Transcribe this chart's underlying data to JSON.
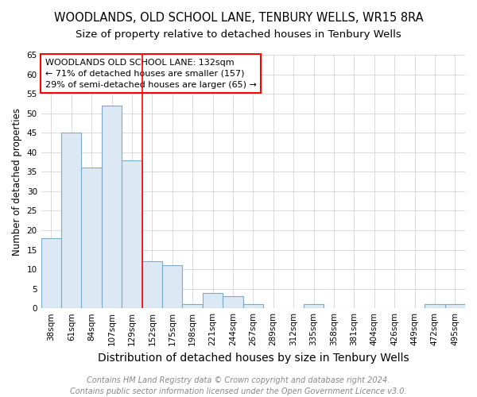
{
  "title": "WOODLANDS, OLD SCHOOL LANE, TENBURY WELLS, WR15 8RA",
  "subtitle": "Size of property relative to detached houses in Tenbury Wells",
  "xlabel": "Distribution of detached houses by size in Tenbury Wells",
  "ylabel": "Number of detached properties",
  "categories": [
    "38sqm",
    "61sqm",
    "84sqm",
    "107sqm",
    "129sqm",
    "152sqm",
    "175sqm",
    "198sqm",
    "221sqm",
    "244sqm",
    "267sqm",
    "289sqm",
    "312sqm",
    "335sqm",
    "358sqm",
    "381sqm",
    "404sqm",
    "426sqm",
    "449sqm",
    "472sqm",
    "495sqm"
  ],
  "values": [
    18,
    45,
    36,
    52,
    38,
    12,
    11,
    1,
    4,
    3,
    1,
    0,
    0,
    1,
    0,
    0,
    0,
    0,
    0,
    1,
    1
  ],
  "bar_color": "#dce9f5",
  "bar_edge_color": "#7aaac8",
  "red_line_x": 4.5,
  "annotation_text": "WOODLANDS OLD SCHOOL LANE: 132sqm\n← 71% of detached houses are smaller (157)\n29% of semi-detached houses are larger (65) →",
  "annotation_box_color": "white",
  "annotation_box_edge": "red",
  "ylim": [
    0,
    65
  ],
  "yticks": [
    0,
    5,
    10,
    15,
    20,
    25,
    30,
    35,
    40,
    45,
    50,
    55,
    60,
    65
  ],
  "footer_line1": "Contains HM Land Registry data © Crown copyright and database right 2024.",
  "footer_line2": "Contains public sector information licensed under the Open Government Licence v3.0.",
  "background_color": "#ffffff",
  "grid_color": "#cccccc",
  "title_fontsize": 10.5,
  "subtitle_fontsize": 9.5,
  "xlabel_fontsize": 10,
  "ylabel_fontsize": 8.5,
  "tick_fontsize": 7.5,
  "annotation_fontsize": 8,
  "footer_fontsize": 7
}
